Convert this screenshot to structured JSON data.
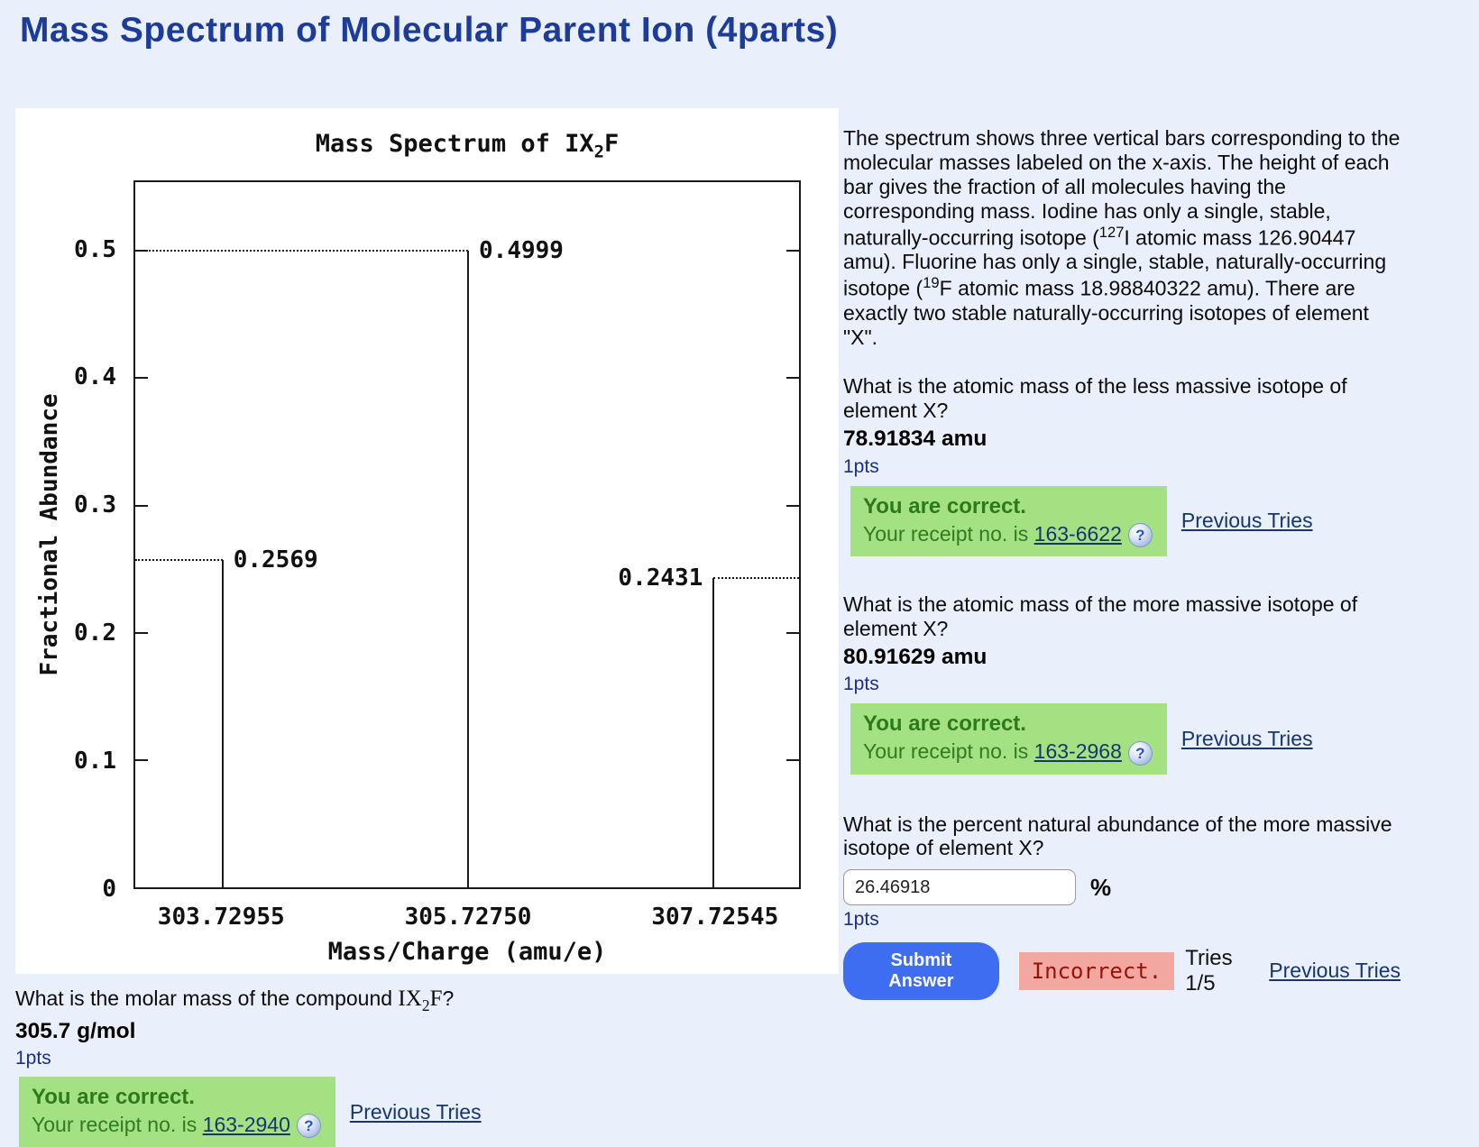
{
  "page": {
    "title": "Mass Spectrum of Molecular Parent Ion (4parts)"
  },
  "chart_data": {
    "type": "bar",
    "title": {
      "before": "Mass Spectrum of IX",
      "sub": "2",
      "after": "F"
    },
    "xlabel": "Mass/Charge (amu/e)",
    "ylabel": "Fractional Abundance",
    "x": [
      303.72955,
      305.7275,
      307.72545
    ],
    "x_tick_labels": [
      "303.72955",
      "305.72750",
      "307.72545"
    ],
    "values": [
      0.2569,
      0.4999,
      0.2431
    ],
    "bar_labels": [
      "0.2569",
      "0.4999",
      "0.2431"
    ],
    "yticks": [
      0.1,
      0.2,
      0.3,
      0.4,
      0.5
    ],
    "ytick_labels": [
      "0.1",
      "0.2",
      "0.3",
      "0.4",
      "0.5"
    ],
    "origin_label": "0",
    "ylim": [
      0,
      0.554
    ],
    "xlim": [
      303.02,
      308.42
    ],
    "grid": false,
    "legend": "none"
  },
  "description": {
    "p1": "The spectrum shows three vertical bars corresponding to the molecular masses labeled on the x-axis. The height of each bar gives the fraction of all molecules having the corresponding mass. Iodine has only a single, stable, naturally-occurring isotope (",
    "sup1": "127",
    "p2": "I atomic mass 126.90447 amu). Fluorine has only a single, stable, naturally-occurring isotope (",
    "sup2": "19",
    "p3": "F atomic mass 18.98840322 amu). There are exactly two stable naturally-occurring isotopes of element \"X\"."
  },
  "questions": {
    "q1": {
      "text": "What is the atomic mass of the less massive isotope of element X?",
      "answer": "78.91834 amu",
      "pts": "1pts",
      "correct_line": "You are correct.",
      "receipt_prefix": "Your receipt no. is ",
      "receipt": "163-6622",
      "help_icon": "?",
      "previous_tries": "Previous Tries"
    },
    "q2": {
      "text": "What is the atomic mass of the more massive isotope of element X?",
      "answer": "80.91629 amu",
      "pts": "1pts",
      "correct_line": "You are correct.",
      "receipt_prefix": "Your receipt no. is ",
      "receipt": "163-2968",
      "help_icon": "?",
      "previous_tries": "Previous Tries"
    },
    "q3": {
      "text": "What is the percent natural abundance of the more massive isotope of element X?",
      "input_value": "26.46918",
      "unit": "%",
      "pts": "1pts",
      "submit_label": "Submit Answer",
      "status": "Incorrect.",
      "tries": "Tries 1/5",
      "previous_tries": "Previous Tries"
    },
    "q4": {
      "text_before": "What is the molar mass of the compound ",
      "formula_before": "IX",
      "formula_sub": "2",
      "formula_after": "F",
      "text_after": "?",
      "answer": "305.7 g/mol",
      "pts": "1pts",
      "correct_line": "You are correct.",
      "receipt_prefix": "Your receipt no. is ",
      "receipt": "163-2940",
      "help_icon": "?",
      "previous_tries": "Previous Tries"
    }
  },
  "colors": {
    "page_bg": "#e9effb",
    "title": "#1d3c98",
    "chart_ink": "#1a1a1a",
    "correct_box_bg": "#a4e183",
    "correct_text": "#2c7a1d",
    "incorrect_box_bg": "#f2a7a0",
    "incorrect_text": "#931209",
    "submit_button_bg": "#3e6df2",
    "link": "#17366d",
    "pts_text": "#1d2f83"
  }
}
